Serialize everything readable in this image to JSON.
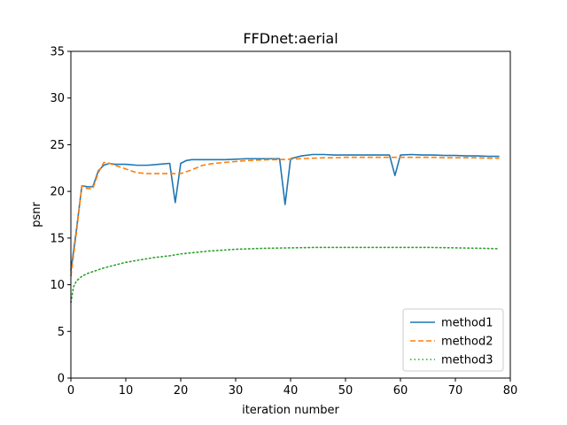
{
  "chart_data": {
    "type": "line",
    "title": "FFDnet:aerial",
    "xlabel": "iteration number",
    "ylabel": "psnr",
    "xlim": [
      0,
      80
    ],
    "ylim": [
      0,
      35
    ],
    "xticks": [
      0,
      10,
      20,
      30,
      40,
      50,
      60,
      70,
      80
    ],
    "yticks": [
      0,
      5,
      10,
      15,
      20,
      25,
      30,
      35
    ],
    "grid": false,
    "legend_position": "lower right",
    "series": [
      {
        "name": "method1",
        "color": "#1f77b4",
        "style": "solid",
        "x": [
          0,
          1,
          2,
          3,
          4,
          5,
          6,
          7,
          8,
          10,
          12,
          14,
          16,
          18,
          19,
          20,
          21,
          22,
          24,
          26,
          28,
          30,
          32,
          34,
          36,
          38,
          39,
          40,
          42,
          44,
          46,
          48,
          50,
          52,
          54,
          56,
          58,
          59,
          60,
          62,
          64,
          66,
          68,
          70,
          72,
          74,
          76,
          78
        ],
        "y": [
          11.5,
          15.8,
          20.6,
          20.5,
          20.5,
          22.2,
          22.8,
          23.0,
          22.9,
          22.9,
          22.8,
          22.8,
          22.9,
          23.0,
          18.8,
          23.0,
          23.3,
          23.4,
          23.4,
          23.4,
          23.4,
          23.45,
          23.5,
          23.5,
          23.5,
          23.5,
          18.6,
          23.5,
          23.8,
          23.95,
          23.95,
          23.9,
          23.9,
          23.9,
          23.9,
          23.9,
          23.9,
          21.7,
          23.9,
          23.95,
          23.9,
          23.9,
          23.85,
          23.85,
          23.8,
          23.8,
          23.75,
          23.75
        ]
      },
      {
        "name": "method2",
        "color": "#ff7f0e",
        "style": "dashed",
        "x": [
          0,
          1,
          2,
          3,
          4,
          5,
          6,
          7,
          8,
          10,
          12,
          14,
          16,
          18,
          20,
          22,
          24,
          26,
          28,
          30,
          32,
          34,
          36,
          38,
          40,
          42,
          44,
          46,
          48,
          50,
          52,
          54,
          56,
          58,
          60,
          62,
          64,
          66,
          68,
          70,
          72,
          74,
          76,
          78
        ],
        "y": [
          10.9,
          15.5,
          20.6,
          20.3,
          20.3,
          22.0,
          23.1,
          23.0,
          22.8,
          22.4,
          22.0,
          21.9,
          21.9,
          21.9,
          21.9,
          22.3,
          22.8,
          23.0,
          23.1,
          23.2,
          23.3,
          23.35,
          23.4,
          23.4,
          23.45,
          23.5,
          23.55,
          23.6,
          23.6,
          23.65,
          23.65,
          23.65,
          23.65,
          23.65,
          23.65,
          23.65,
          23.65,
          23.65,
          23.6,
          23.6,
          23.6,
          23.6,
          23.55,
          23.55
        ]
      },
      {
        "name": "method3",
        "color": "#2ca02c",
        "style": "dotted",
        "x": [
          0,
          0.5,
          1,
          2,
          3,
          4,
          5,
          6,
          8,
          10,
          12,
          15,
          18,
          20,
          25,
          30,
          35,
          40,
          45,
          50,
          55,
          60,
          65,
          70,
          75,
          78
        ],
        "y": [
          8.1,
          9.8,
          10.4,
          10.9,
          11.2,
          11.4,
          11.6,
          11.8,
          12.1,
          12.4,
          12.6,
          12.9,
          13.1,
          13.3,
          13.6,
          13.8,
          13.9,
          13.95,
          14.0,
          14.0,
          14.0,
          14.0,
          14.0,
          13.95,
          13.9,
          13.85
        ]
      }
    ]
  }
}
